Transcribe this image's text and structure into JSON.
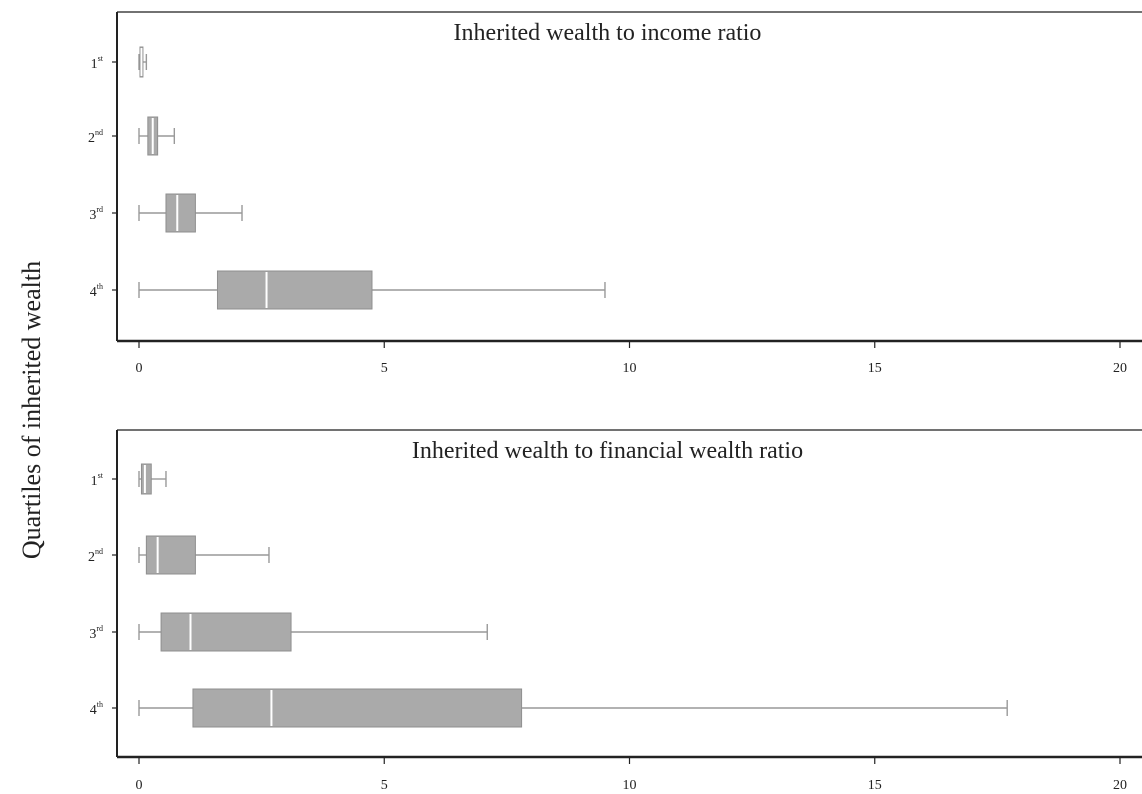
{
  "y_axis_label": "Quartiles of inherited wealth",
  "chart_data": [
    {
      "type": "box",
      "title": "Inherited wealth to income ratio",
      "xlabel": "",
      "ylabel": "Quartiles of inherited wealth",
      "xlim": [
        0,
        20
      ],
      "xticks": [
        0,
        5,
        10,
        15,
        20
      ],
      "grid": false,
      "fill_color": "#aaaaaa",
      "categories": [
        {
          "num": "1",
          "suffix": "st"
        },
        {
          "num": "2",
          "suffix": "nd"
        },
        {
          "num": "3",
          "suffix": "rd"
        },
        {
          "num": "4",
          "suffix": "th"
        }
      ],
      "boxes": [
        {
          "whisker_low": 0.0,
          "q1": 0.02,
          "median": 0.05,
          "q3": 0.08,
          "whisker_high": 0.15
        },
        {
          "whisker_low": 0.0,
          "q1": 0.18,
          "median": 0.28,
          "q3": 0.38,
          "whisker_high": 0.72
        },
        {
          "whisker_low": 0.0,
          "q1": 0.55,
          "median": 0.78,
          "q3": 1.15,
          "whisker_high": 2.1
        },
        {
          "whisker_low": 0.0,
          "q1": 1.6,
          "median": 2.6,
          "q3": 4.75,
          "whisker_high": 9.5
        }
      ]
    },
    {
      "type": "box",
      "title": "Inherited wealth to financial wealth ratio",
      "xlabel": "",
      "ylabel": "Quartiles of inherited wealth",
      "xlim": [
        0,
        20
      ],
      "xticks": [
        0,
        5,
        10,
        15,
        20
      ],
      "grid": false,
      "fill_color": "#aaaaaa",
      "categories": [
        {
          "num": "1",
          "suffix": "st"
        },
        {
          "num": "2",
          "suffix": "nd"
        },
        {
          "num": "3",
          "suffix": "rd"
        },
        {
          "num": "4",
          "suffix": "th"
        }
      ],
      "boxes": [
        {
          "whisker_low": 0.0,
          "q1": 0.05,
          "median": 0.12,
          "q3": 0.25,
          "whisker_high": 0.55
        },
        {
          "whisker_low": 0.0,
          "q1": 0.15,
          "median": 0.38,
          "q3": 1.15,
          "whisker_high": 2.65
        },
        {
          "whisker_low": 0.0,
          "q1": 0.45,
          "median": 1.05,
          "q3": 3.1,
          "whisker_high": 7.1
        },
        {
          "whisker_low": 0.0,
          "q1": 1.1,
          "median": 2.7,
          "q3": 7.8,
          "whisker_high": 17.7
        }
      ]
    }
  ]
}
